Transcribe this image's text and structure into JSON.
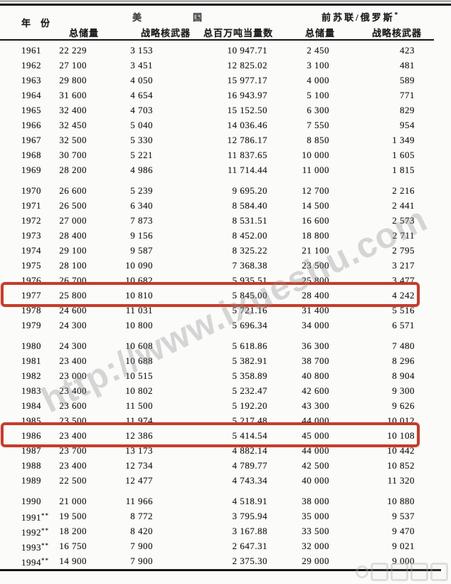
{
  "table": {
    "header": {
      "year_label": "年份",
      "us_group_label": "美国",
      "ussr_group_label": "前苏联/俄罗斯",
      "ussr_group_note": "*",
      "subheaders": [
        "总储量",
        "战略核武器",
        "总百万吨当量数",
        "总储量",
        "战略核武器"
      ]
    },
    "columns": [
      "year",
      "us_total",
      "us_strategic",
      "us_megatons",
      "su_total",
      "su_strategic"
    ],
    "rows": [
      {
        "year": "1961",
        "mark": "",
        "us_total": "22 229",
        "us_strategic": "3 153",
        "us_megatons": "10 947.71",
        "su_total": "2 450",
        "su_strategic": "423",
        "highlight": false,
        "new_decade": false
      },
      {
        "year": "1962",
        "mark": "",
        "us_total": "27 100",
        "us_strategic": "3 451",
        "us_megatons": "12 825.02",
        "su_total": "3 100",
        "su_strategic": "481",
        "highlight": false,
        "new_decade": false
      },
      {
        "year": "1963",
        "mark": "",
        "us_total": "29 800",
        "us_strategic": "4 050",
        "us_megatons": "15 977.17",
        "su_total": "4 000",
        "su_strategic": "589",
        "highlight": false,
        "new_decade": false
      },
      {
        "year": "1964",
        "mark": "",
        "us_total": "31 600",
        "us_strategic": "4 654",
        "us_megatons": "16 943.97",
        "su_total": "5 100",
        "su_strategic": "771",
        "highlight": false,
        "new_decade": false
      },
      {
        "year": "1965",
        "mark": "",
        "us_total": "32 400",
        "us_strategic": "4 703",
        "us_megatons": "15 152.50",
        "su_total": "6 300",
        "su_strategic": "829",
        "highlight": false,
        "new_decade": false
      },
      {
        "year": "1966",
        "mark": "",
        "us_total": "32 450",
        "us_strategic": "5 040",
        "us_megatons": "14 036.46",
        "su_total": "7 550",
        "su_strategic": "954",
        "highlight": false,
        "new_decade": false
      },
      {
        "year": "1967",
        "mark": "",
        "us_total": "32 500",
        "us_strategic": "5 330",
        "us_megatons": "12 786.17",
        "su_total": "8 850",
        "su_strategic": "1 349",
        "highlight": false,
        "new_decade": false
      },
      {
        "year": "1968",
        "mark": "",
        "us_total": "30 700",
        "us_strategic": "5 221",
        "us_megatons": "11 837.65",
        "su_total": "10 000",
        "su_strategic": "1 605",
        "highlight": false,
        "new_decade": false
      },
      {
        "year": "1969",
        "mark": "",
        "us_total": "28 200",
        "us_strategic": "4 986",
        "us_megatons": "11 714.44",
        "su_total": "11 000",
        "su_strategic": "1 815",
        "highlight": false,
        "new_decade": false
      },
      {
        "year": "1970",
        "mark": "",
        "us_total": "26 600",
        "us_strategic": "5 239",
        "us_megatons": "9 695.20",
        "su_total": "12 700",
        "su_strategic": "2 216",
        "highlight": false,
        "new_decade": true
      },
      {
        "year": "1971",
        "mark": "",
        "us_total": "26 500",
        "us_strategic": "6 340",
        "us_megatons": "8 584.40",
        "su_total": "14 500",
        "su_strategic": "2 441",
        "highlight": false,
        "new_decade": false
      },
      {
        "year": "1972",
        "mark": "",
        "us_total": "27 000",
        "us_strategic": "7 873",
        "us_megatons": "8 531.51",
        "su_total": "16 600",
        "su_strategic": "2 573",
        "highlight": false,
        "new_decade": false
      },
      {
        "year": "1973",
        "mark": "",
        "us_total": "28 400",
        "us_strategic": "9 156",
        "us_megatons": "8 452.00",
        "su_total": "18 800",
        "su_strategic": "2 711",
        "highlight": false,
        "new_decade": false
      },
      {
        "year": "1974",
        "mark": "",
        "us_total": "29 100",
        "us_strategic": "9 587",
        "us_megatons": "8 325.22",
        "su_total": "21 100",
        "su_strategic": "2 795",
        "highlight": false,
        "new_decade": false
      },
      {
        "year": "1975",
        "mark": "",
        "us_total": "28 100",
        "us_strategic": "10 090",
        "us_megatons": "7 368.38",
        "su_total": "23 500",
        "su_strategic": "3 217",
        "highlight": false,
        "new_decade": false
      },
      {
        "year": "1976",
        "mark": "",
        "us_total": "26 700",
        "us_strategic": "10 682",
        "us_megatons": "5 935.51",
        "su_total": "25 800",
        "su_strategic": "3 477",
        "highlight": false,
        "new_decade": false
      },
      {
        "year": "1977",
        "mark": "",
        "us_total": "25 800",
        "us_strategic": "10 810",
        "us_megatons": "5 845.00",
        "su_total": "28 400",
        "su_strategic": "4 242",
        "highlight": true,
        "new_decade": false
      },
      {
        "year": "1978",
        "mark": "",
        "us_total": "24 600",
        "us_strategic": "11 031",
        "us_megatons": "5 721.16",
        "su_total": "31 400",
        "su_strategic": "5 516",
        "highlight": false,
        "new_decade": false
      },
      {
        "year": "1979",
        "mark": "",
        "us_total": "24 300",
        "us_strategic": "10 800",
        "us_megatons": "5 696.34",
        "su_total": "34 000",
        "su_strategic": "6 571",
        "highlight": false,
        "new_decade": false
      },
      {
        "year": "1980",
        "mark": "",
        "us_total": "24 300",
        "us_strategic": "10 608",
        "us_megatons": "5 618.86",
        "su_total": "36 300",
        "su_strategic": "7 480",
        "highlight": false,
        "new_decade": true
      },
      {
        "year": "1981",
        "mark": "",
        "us_total": "23 400",
        "us_strategic": "10 688",
        "us_megatons": "5 382.91",
        "su_total": "38 700",
        "su_strategic": "8 296",
        "highlight": false,
        "new_decade": false
      },
      {
        "year": "1982",
        "mark": "",
        "us_total": "23 000",
        "us_strategic": "10 515",
        "us_megatons": "5 358.89",
        "su_total": "40 800",
        "su_strategic": "8 904",
        "highlight": false,
        "new_decade": false
      },
      {
        "year": "1983",
        "mark": "",
        "us_total": "23 400",
        "us_strategic": "10 802",
        "us_megatons": "5 232.47",
        "su_total": "42 600",
        "su_strategic": "9 300",
        "highlight": false,
        "new_decade": false
      },
      {
        "year": "1984",
        "mark": "",
        "us_total": "23 600",
        "us_strategic": "11 500",
        "us_megatons": "5 192.20",
        "su_total": "43 300",
        "su_strategic": "9 626",
        "highlight": false,
        "new_decade": false
      },
      {
        "year": "1985",
        "mark": "",
        "us_total": "23 500",
        "us_strategic": "11 974",
        "us_megatons": "5 217.48",
        "su_total": "44 000",
        "su_strategic": "10 012",
        "highlight": false,
        "new_decade": false
      },
      {
        "year": "1986",
        "mark": "",
        "us_total": "23 400",
        "us_strategic": "12 386",
        "us_megatons": "5 414.54",
        "su_total": "45 000",
        "su_strategic": "10 108",
        "highlight": true,
        "new_decade": false
      },
      {
        "year": "1987",
        "mark": "",
        "us_total": "23 700",
        "us_strategic": "13 173",
        "us_megatons": "4 882.14",
        "su_total": "44 000",
        "su_strategic": "10 442",
        "highlight": false,
        "new_decade": false
      },
      {
        "year": "1988",
        "mark": "",
        "us_total": "23 400",
        "us_strategic": "12 734",
        "us_megatons": "4 789.77",
        "su_total": "42 500",
        "su_strategic": "10 852",
        "highlight": false,
        "new_decade": false
      },
      {
        "year": "1989",
        "mark": "",
        "us_total": "22 500",
        "us_strategic": "12 477",
        "us_megatons": "4 743.34",
        "su_total": "40 000",
        "su_strategic": "11 320",
        "highlight": false,
        "new_decade": false
      },
      {
        "year": "1990",
        "mark": "",
        "us_total": "21 000",
        "us_strategic": "11 966",
        "us_megatons": "4 518.91",
        "su_total": "38 000",
        "su_strategic": "10 880",
        "highlight": false,
        "new_decade": true
      },
      {
        "year": "1991",
        "mark": "**",
        "us_total": "19 500",
        "us_strategic": "8 772",
        "us_megatons": "3 795.94",
        "su_total": "35 000",
        "su_strategic": "9 537",
        "highlight": false,
        "new_decade": false
      },
      {
        "year": "1992",
        "mark": "**",
        "us_total": "18 200",
        "us_strategic": "8 420",
        "us_megatons": "3 167.88",
        "su_total": "33 500",
        "su_strategic": "9 470",
        "highlight": false,
        "new_decade": false
      },
      {
        "year": "1993",
        "mark": "**",
        "us_total": "16 750",
        "us_strategic": "7 900",
        "us_megatons": "2 647.31",
        "su_total": "32 000",
        "su_strategic": "9 021",
        "highlight": false,
        "new_decade": false
      },
      {
        "year": "1994",
        "mark": "**",
        "us_total": "14 900",
        "us_strategic": "7 900",
        "us_megatons": "2 375.30",
        "su_total": "29 000",
        "su_strategic": "9 000",
        "highlight": false,
        "new_decade": false
      }
    ]
  },
  "watermarks": {
    "diagonal": "http://www.ixueshu.com",
    "corner_note": "illegible gray logo"
  },
  "colors": {
    "highlight_box": "#c43d2b",
    "watermark_gray": "#8c8c8c",
    "rule_black": "#151515"
  }
}
